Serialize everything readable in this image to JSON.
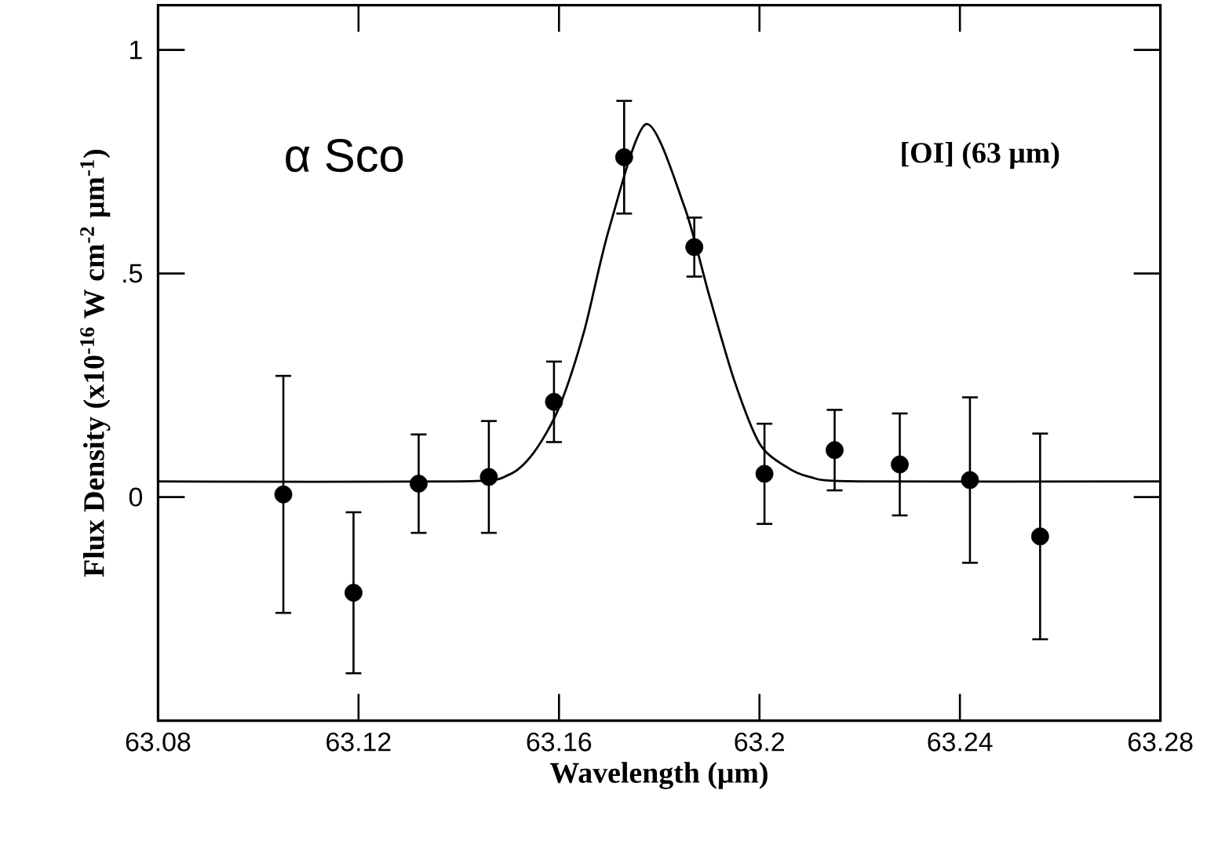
{
  "chart_data": {
    "type": "scatter",
    "xlabel": "Wavelength (μm)",
    "ylabel": "Flux Density (x10$^{-16}$ W cm$^{-2}$ μm$^{-1}$)",
    "annotations": [
      "α Sco",
      "[OI] (63 μm)"
    ],
    "xlim": [
      63.08,
      63.28
    ],
    "ylim": [
      -0.5,
      1.1
    ],
    "xticks": [
      63.08,
      63.12,
      63.16,
      63.2,
      63.24,
      63.28
    ],
    "yticks": [
      0,
      {
        "value": 0.5,
        "label": ".5"
      },
      1
    ],
    "series": [
      {
        "color": "#000000",
        "marker": "circle",
        "x": [
          63.105,
          63.119,
          63.132,
          63.146,
          63.159,
          63.173,
          63.187,
          63.201,
          63.215,
          63.228,
          63.242,
          63.256
        ],
        "values": [
          0.006,
          -0.214,
          0.03,
          0.045,
          0.213,
          0.76,
          0.559,
          0.052,
          0.105,
          0.073,
          0.038,
          -0.088
        ],
        "errors": [
          0.265,
          0.18,
          0.11,
          0.125,
          0.09,
          0.126,
          0.066,
          0.112,
          0.09,
          0.114,
          0.185,
          0.23
        ]
      },
      {
        "type": "line",
        "color": "#000000",
        "marker": "none",
        "line_style": "solid",
        "x": [
          63.08,
          63.14,
          63.15,
          63.155,
          63.16,
          63.165,
          63.17,
          63.1774,
          63.185,
          63.19,
          63.195,
          63.2,
          63.205,
          63.21,
          63.22,
          63.28
        ],
        "values": [
          0.035,
          0.035,
          0.05,
          0.1,
          0.2,
          0.37,
          0.6,
          0.834,
          0.65,
          0.45,
          0.26,
          0.12,
          0.07,
          0.045,
          0.035,
          0.035
        ]
      }
    ]
  }
}
